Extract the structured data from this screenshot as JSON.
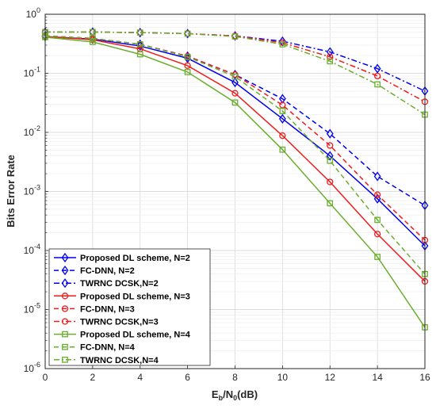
{
  "chart_data": {
    "type": "line",
    "y_scale": "log",
    "grid": true,
    "legend_position": "bottom-left",
    "xlabel": {
      "main": "E",
      "sub1": "b",
      "mid": "/N",
      "sub2": "0",
      "tail": "(dB)"
    },
    "ylabel": "Bits Error Rate",
    "xlim": [
      0,
      16
    ],
    "ylim": [
      1e-06,
      1
    ],
    "x_ticks": [
      0,
      2,
      4,
      6,
      8,
      10,
      12,
      14,
      16
    ],
    "x_tick_labels": [
      "0",
      "2",
      "4",
      "6",
      "8",
      "10",
      "12",
      "14",
      "16"
    ],
    "y_ticks": [
      {
        "value": 1,
        "base": "10",
        "exp": "0"
      },
      {
        "value": 0.1,
        "base": "10",
        "exp": "-1"
      },
      {
        "value": 0.01,
        "base": "10",
        "exp": "-2"
      },
      {
        "value": 0.001,
        "base": "10",
        "exp": "-3"
      },
      {
        "value": 0.0001,
        "base": "10",
        "exp": "-4"
      },
      {
        "value": 1e-05,
        "base": "10",
        "exp": "-5"
      },
      {
        "value": 1e-06,
        "base": "10",
        "exp": "-6"
      }
    ],
    "series": [
      {
        "name": "Proposed DL scheme, N=2",
        "color": "#0000ee",
        "dash": "solid",
        "marker": "diamond",
        "x": [
          0,
          2,
          4,
          6,
          8,
          10,
          12,
          14,
          16
        ],
        "y": [
          0.42,
          0.38,
          0.29,
          0.18,
          0.07,
          0.017,
          0.004,
          0.00075,
          0.00012
        ]
      },
      {
        "name": "FC-DNN, N=2",
        "color": "#0000ee",
        "dash": "dashed",
        "marker": "diamond",
        "x": [
          0,
          2,
          4,
          6,
          8,
          10,
          12,
          14,
          16
        ],
        "y": [
          0.43,
          0.39,
          0.31,
          0.195,
          0.095,
          0.037,
          0.0095,
          0.0018,
          0.00058
        ]
      },
      {
        "name": "TWRNC DCSK,N=2",
        "color": "#0000ee",
        "dash": "dashdot",
        "marker": "diamond",
        "x": [
          0,
          2,
          4,
          6,
          8,
          10,
          12,
          14,
          16
        ],
        "y": [
          0.5,
          0.5,
          0.49,
          0.47,
          0.43,
          0.35,
          0.23,
          0.12,
          0.05
        ]
      },
      {
        "name": "Proposed DL scheme, N=3",
        "color": "#ee1c1c",
        "dash": "solid",
        "marker": "circle",
        "x": [
          0,
          2,
          4,
          6,
          8,
          10,
          12,
          14,
          16
        ],
        "y": [
          0.42,
          0.37,
          0.26,
          0.135,
          0.046,
          0.0088,
          0.00145,
          0.00019,
          3e-05
        ]
      },
      {
        "name": "FC-DNN, N=3",
        "color": "#ee1c1c",
        "dash": "dashed",
        "marker": "circle",
        "x": [
          0,
          2,
          4,
          6,
          8,
          10,
          12,
          14,
          16
        ],
        "y": [
          0.43,
          0.39,
          0.31,
          0.195,
          0.095,
          0.029,
          0.006,
          0.00088,
          0.00015
        ]
      },
      {
        "name": "TWRNC DCSK,N=3",
        "color": "#ee1c1c",
        "dash": "dashdot",
        "marker": "circle",
        "x": [
          0,
          2,
          4,
          6,
          8,
          10,
          12,
          14,
          16
        ],
        "y": [
          0.5,
          0.5,
          0.49,
          0.47,
          0.43,
          0.33,
          0.19,
          0.09,
          0.033
        ]
      },
      {
        "name": "Proposed DL scheme, N=4",
        "color": "#6aae2e",
        "dash": "solid",
        "marker": "square",
        "x": [
          0,
          2,
          4,
          6,
          8,
          10,
          12,
          14,
          16
        ],
        "y": [
          0.41,
          0.34,
          0.21,
          0.105,
          0.032,
          0.0051,
          0.00063,
          7.8e-05,
          5e-06
        ]
      },
      {
        "name": "FC-DNN, N=4",
        "color": "#6aae2e",
        "dash": "dashed",
        "marker": "square",
        "x": [
          0,
          2,
          4,
          6,
          8,
          10,
          12,
          14,
          16
        ],
        "y": [
          0.43,
          0.39,
          0.31,
          0.19,
          0.088,
          0.023,
          0.0033,
          0.00033,
          4e-05
        ]
      },
      {
        "name": "TWRNC DCSK,N=4",
        "color": "#6aae2e",
        "dash": "dashdot",
        "marker": "square",
        "x": [
          0,
          2,
          4,
          6,
          8,
          10,
          12,
          14,
          16
        ],
        "y": [
          0.5,
          0.5,
          0.49,
          0.47,
          0.42,
          0.31,
          0.16,
          0.065,
          0.02
        ]
      }
    ]
  }
}
